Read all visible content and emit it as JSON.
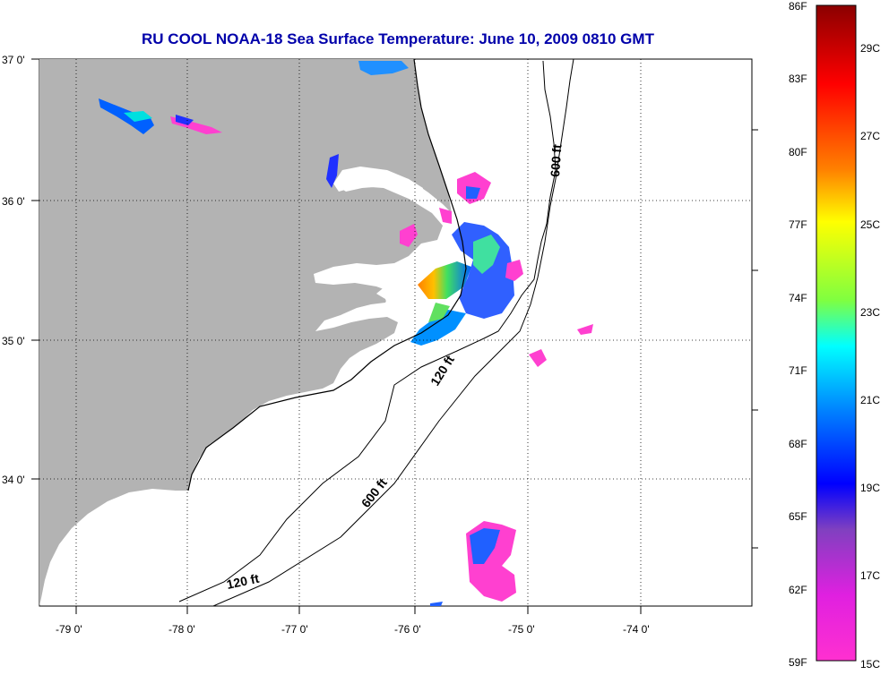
{
  "title": "RU COOL  NOAA-18  Sea Surface Temperature:  June 10, 2009 0810 GMT",
  "map": {
    "lon_range": [
      -79.3,
      -73.1
    ],
    "lat_range": [
      33.1,
      37.0
    ],
    "lon_ticks": [
      {
        "value": -79.0,
        "label": "-79 0'"
      },
      {
        "value": -78.0,
        "label": "-78 0'"
      },
      {
        "value": -77.0,
        "label": "-77 0'"
      },
      {
        "value": -76.0,
        "label": "-76 0'"
      },
      {
        "value": -75.0,
        "label": "-75 0'"
      },
      {
        "value": -74.0,
        "label": "-74 0'"
      }
    ],
    "lat_ticks": [
      {
        "value": 37.0,
        "label": "37 0'"
      },
      {
        "value": 36.0,
        "label": "36 0'"
      },
      {
        "value": 35.0,
        "label": "35 0'"
      },
      {
        "value": 34.0,
        "label": "34 0'"
      }
    ],
    "contour_labels": {
      "c600_north": "600 ft",
      "c120_middle": "120 ft",
      "c600_south": "600 ft",
      "c120_south": "120 ft"
    },
    "land_color": "#b3b3b3",
    "contour_color": "#000000",
    "grid": "dotted"
  },
  "colorbar": {
    "range_f": [
      59,
      86
    ],
    "range_c": [
      15,
      30
    ],
    "f_labels": [
      "86F",
      "83F",
      "80F",
      "77F",
      "74F",
      "71F",
      "68F",
      "65F",
      "62F",
      "59F"
    ],
    "c_labels": [
      "29C",
      "27C",
      "25C",
      "23C",
      "21C",
      "19C",
      "17C",
      "15C"
    ]
  }
}
